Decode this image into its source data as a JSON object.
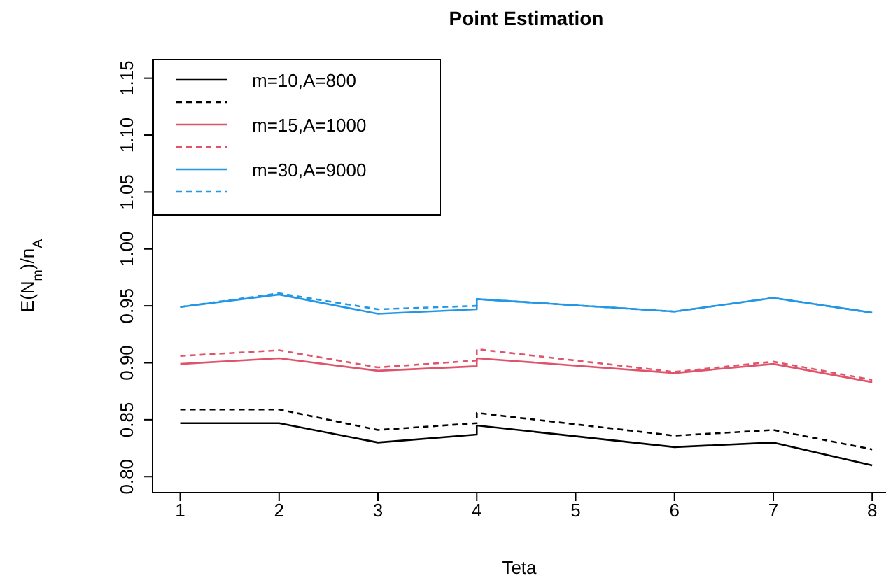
{
  "chart_data": {
    "type": "line",
    "title": "Point Estimation",
    "xlabel": "Teta",
    "ylabel": "E(N$_{m}$)/n$_{A}$",
    "x": [
      1,
      2,
      3,
      4,
      4,
      6,
      7,
      8
    ],
    "series": [
      {
        "name": "m=10,A=800",
        "color": "#000000",
        "line_style": "solid",
        "values": [
          0.847,
          0.847,
          0.83,
          0.837,
          0.845,
          0.826,
          0.83,
          0.81
        ]
      },
      {
        "color": "#000000",
        "line_style": "dashed",
        "values": [
          0.859,
          0.859,
          0.841,
          0.847,
          0.856,
          0.836,
          0.841,
          0.824
        ]
      },
      {
        "name": "m=15,A=1000",
        "color": "#df536b",
        "line_style": "solid",
        "values": [
          0.899,
          0.904,
          0.893,
          0.897,
          0.904,
          0.891,
          0.899,
          0.883
        ]
      },
      {
        "color": "#df536b",
        "line_style": "dashed",
        "values": [
          0.906,
          0.911,
          0.896,
          0.902,
          0.912,
          0.892,
          0.901,
          0.885
        ]
      },
      {
        "name": "m=30,A=9000",
        "color": "#2297e6",
        "line_style": "solid",
        "values": [
          0.949,
          0.96,
          0.943,
          0.947,
          0.956,
          0.945,
          0.957,
          0.944
        ]
      },
      {
        "color": "#2297e6",
        "line_style": "dashed",
        "values": [
          0.949,
          0.961,
          0.947,
          0.95,
          0.956,
          0.945,
          0.957,
          0.944
        ]
      }
    ],
    "xlim": [
      0.72,
      8.14
    ],
    "xticks": [
      1,
      2,
      3,
      4,
      5,
      6,
      7,
      8
    ],
    "ylim": [
      0.786,
      1.167
    ],
    "yticks": [
      {
        "value": 0.8,
        "label": "0.80"
      },
      {
        "value": 0.85,
        "label": "0.85"
      },
      {
        "value": 0.9,
        "label": "0.90"
      },
      {
        "value": 0.95,
        "label": "0.95"
      },
      {
        "value": 1.0,
        "label": "1.00"
      },
      {
        "value": 1.05,
        "label": "1.05"
      },
      {
        "value": 1.1,
        "label": "1.10"
      },
      {
        "value": 1.15,
        "label": "1.15"
      }
    ],
    "marker": "none",
    "grid": false,
    "legend": "top left"
  }
}
